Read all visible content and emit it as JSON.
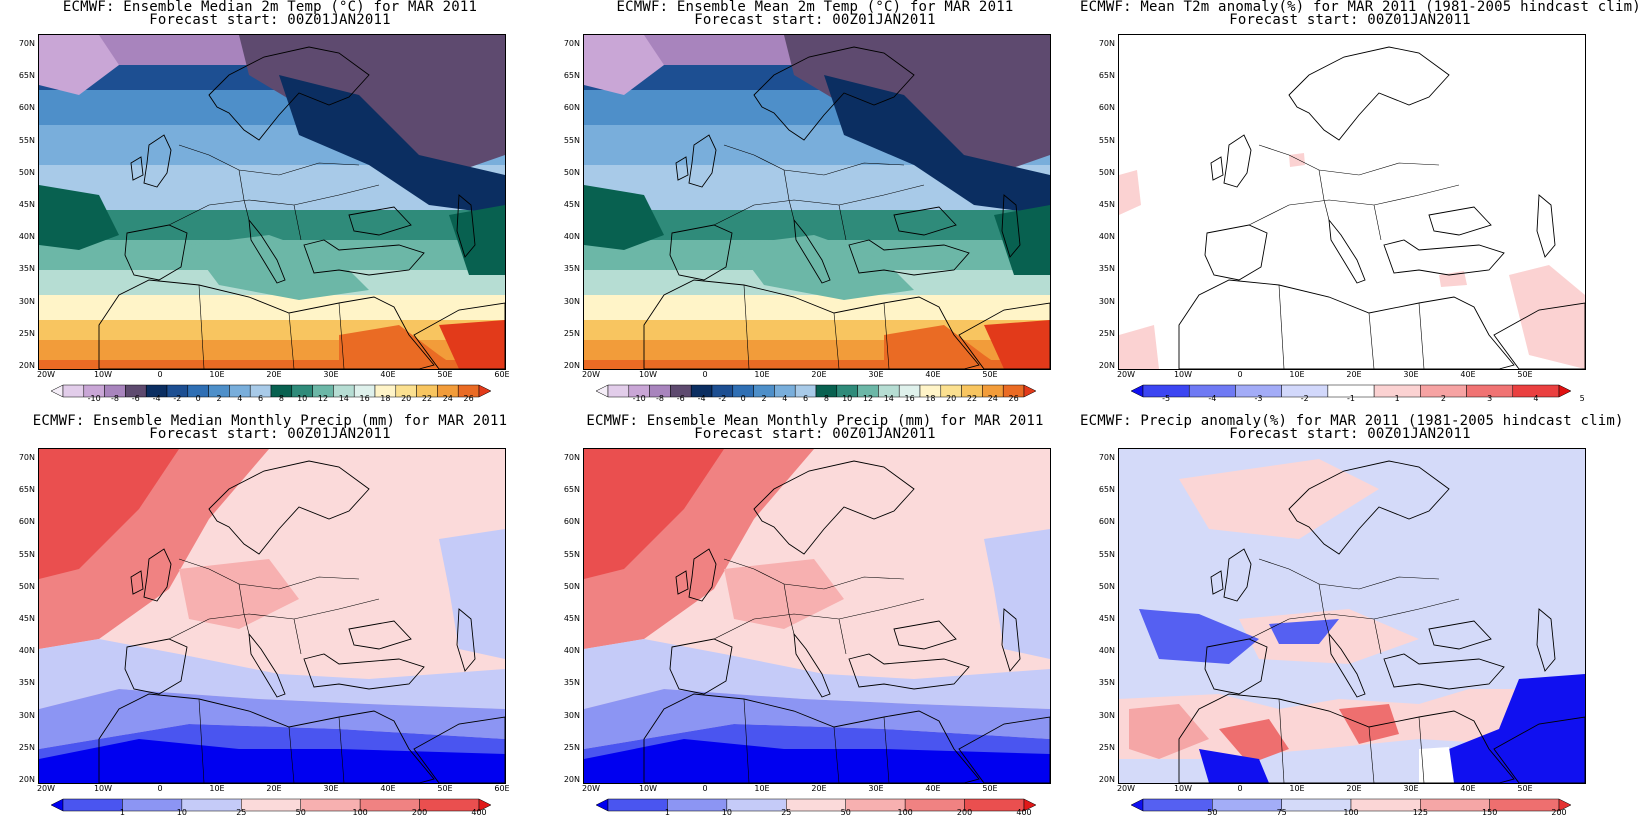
{
  "panels": [
    {
      "key": "t2m_median",
      "title_line1": "ECMWF: Ensemble Median 2m Temp (°C) for MAR 2011",
      "title_line2": "Forecast start: 00Z01JAN2011",
      "fill": "temp",
      "x_ticks": [
        "20W",
        "10W",
        "0",
        "10E",
        "20E",
        "30E",
        "40E",
        "50E",
        "60E"
      ],
      "y_ticks": [
        "70N",
        "65N",
        "60N",
        "55N",
        "50N",
        "45N",
        "40N",
        "35N",
        "30N",
        "25N",
        "20N"
      ],
      "colorbar": {
        "colors": [
          "#f5eef8",
          "#e2cdea",
          "#c9a6d6",
          "#a884bd",
          "#5e4a6f",
          "#0b2e61",
          "#1d4f92",
          "#2f6fb4",
          "#4e8fc9",
          "#79aedb",
          "#a8cae8",
          "#086150",
          "#2f8b7a",
          "#6cb7a7",
          "#b6ddd3",
          "#dff1ec",
          "#fff4c8",
          "#fbe090",
          "#f8c560",
          "#f29c3a",
          "#ea6b24",
          "#e23a1a"
        ],
        "labels": [
          "-10",
          "-8",
          "-6",
          "-4",
          "-2",
          "0",
          "2",
          "4",
          "6",
          "8",
          "10",
          "12",
          "14",
          "16",
          "18",
          "20",
          "22",
          "24",
          "26"
        ]
      }
    },
    {
      "key": "t2m_mean",
      "title_line1": "ECMWF: Ensemble Mean 2m Temp (°C) for MAR 2011",
      "title_line2": "Forecast start: 00Z01JAN2011",
      "fill": "temp",
      "x_ticks": [
        "20W",
        "10W",
        "0",
        "10E",
        "20E",
        "30E",
        "40E",
        "50E"
      ],
      "y_ticks": [
        "70N",
        "65N",
        "60N",
        "55N",
        "50N",
        "45N",
        "40N",
        "35N",
        "30N",
        "25N",
        "20N"
      ],
      "colorbar": {
        "colors": [
          "#f5eef8",
          "#e2cdea",
          "#c9a6d6",
          "#a884bd",
          "#5e4a6f",
          "#0b2e61",
          "#1d4f92",
          "#2f6fb4",
          "#4e8fc9",
          "#79aedb",
          "#a8cae8",
          "#086150",
          "#2f8b7a",
          "#6cb7a7",
          "#b6ddd3",
          "#dff1ec",
          "#fff4c8",
          "#fbe090",
          "#f8c560",
          "#f29c3a",
          "#ea6b24",
          "#e23a1a"
        ],
        "labels": [
          "-10",
          "-8",
          "-6",
          "-4",
          "-2",
          "0",
          "2",
          "4",
          "6",
          "8",
          "10",
          "12",
          "14",
          "16",
          "18",
          "20",
          "22",
          "24",
          "26"
        ]
      }
    },
    {
      "key": "t2m_anom",
      "title_line1": "ECMWF: Mean T2m anomaly(%) for MAR 2011 (1981-2005 hindcast clim)",
      "title_line2": "Forecast start: 00Z01JAN2011",
      "fill": "tanom",
      "x_ticks": [
        "20W",
        "10W",
        "0",
        "10E",
        "20E",
        "30E",
        "40E",
        "50E"
      ],
      "y_ticks": [
        "70N",
        "65N",
        "60N",
        "55N",
        "50N",
        "45N",
        "40N",
        "35N",
        "30N",
        "25N",
        "20N"
      ],
      "colorbar": {
        "colors": [
          "#1010f0",
          "#3c46f2",
          "#6f7af4",
          "#a3acf7",
          "#d2d8fb",
          "#ffffff",
          "#fbd2d2",
          "#f6a3a3",
          "#f07373",
          "#ea4040",
          "#e01010"
        ],
        "labels": [
          "-5",
          "-4",
          "-3",
          "-2",
          "-1",
          "1",
          "2",
          "3",
          "4",
          "5"
        ]
      }
    },
    {
      "key": "pr_median",
      "title_line1": "ECMWF: Ensemble Median Monthly Precip (mm) for MAR 2011",
      "title_line2": "Forecast start: 00Z01JAN2011",
      "fill": "precip",
      "x_ticks": [
        "20W",
        "10W",
        "0",
        "10E",
        "20E",
        "30E",
        "40E",
        "50E",
        "60E"
      ],
      "y_ticks": [
        "70N",
        "65N",
        "60N",
        "55N",
        "50N",
        "45N",
        "40N",
        "35N",
        "30N",
        "25N",
        "20N"
      ],
      "colorbar": {
        "colors": [
          "#0000f0",
          "#4a55f0",
          "#8c95f3",
          "#c5cbf8",
          "#fbdada",
          "#f7b0b0",
          "#f08282",
          "#ea4f4f",
          "#e01818"
        ],
        "labels": [
          "1",
          "10",
          "25",
          "50",
          "100",
          "200",
          "400"
        ]
      }
    },
    {
      "key": "pr_mean",
      "title_line1": "ECMWF: Ensemble Mean Monthly Precip (mm) for MAR 2011",
      "title_line2": "Forecast start: 00Z01JAN2011",
      "fill": "precip",
      "x_ticks": [
        "20W",
        "10W",
        "0",
        "10E",
        "20E",
        "30E",
        "40E",
        "50E"
      ],
      "y_ticks": [
        "70N",
        "65N",
        "60N",
        "55N",
        "50N",
        "45N",
        "40N",
        "35N",
        "30N",
        "25N",
        "20N"
      ],
      "colorbar": {
        "colors": [
          "#0000f0",
          "#4a55f0",
          "#8c95f3",
          "#c5cbf8",
          "#fbdada",
          "#f7b0b0",
          "#f08282",
          "#ea4f4f",
          "#e01818"
        ],
        "labels": [
          "1",
          "10",
          "25",
          "50",
          "100",
          "200",
          "400"
        ]
      }
    },
    {
      "key": "pr_anom",
      "title_line1": "ECMWF: Precip anomaly(%) for MAR 2011 (1981-2005 hindcast clim)",
      "title_line2": "Forecast start: 00Z01JAN2011",
      "fill": "panom",
      "x_ticks": [
        "20W",
        "10W",
        "0",
        "10E",
        "20E",
        "30E",
        "40E",
        "50E"
      ],
      "y_ticks": [
        "70N",
        "65N",
        "60N",
        "55N",
        "50N",
        "45N",
        "40N",
        "35N",
        "30N",
        "25N",
        "20N"
      ],
      "colorbar": {
        "colors": [
          "#1010f0",
          "#5560f2",
          "#a3adf7",
          "#d4daf9",
          "#fbd6d6",
          "#f5a6a6",
          "#ee6f6f",
          "#e43030"
        ],
        "labels": [
          "50",
          "75",
          "100",
          "125",
          "150",
          "200"
        ]
      }
    }
  ]
}
